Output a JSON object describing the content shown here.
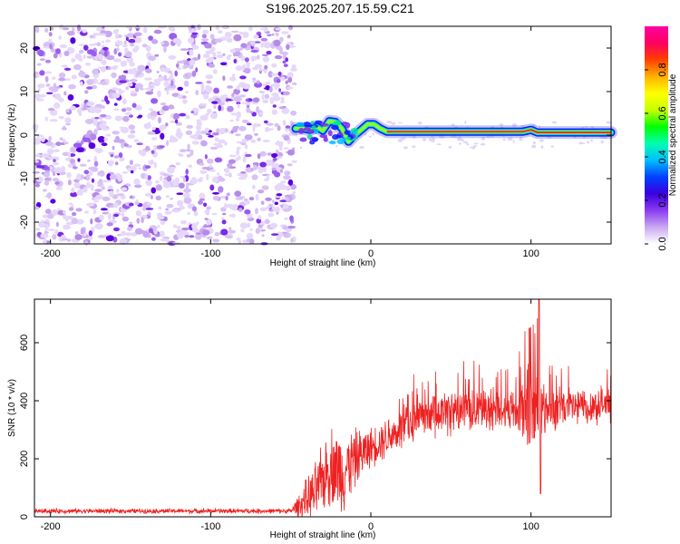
{
  "title": "S196.2025.207.15.59.C21",
  "chart_data": [
    {
      "type": "heatmap",
      "xlabel": "Height of straight line (km)",
      "ylabel": "Frequency (Hz)",
      "xlim": [
        -210,
        150
      ],
      "ylim": [
        -25,
        25
      ],
      "xticks": [
        -200,
        -100,
        0,
        100
      ],
      "yticks": [
        -20,
        -10,
        0,
        10,
        20
      ],
      "colorbar": {
        "label": "Normalized spectral amplitude",
        "range": [
          0,
          1
        ],
        "ticks": [
          "0.0",
          "0.2",
          "0.4",
          "0.6",
          "0.8"
        ],
        "colors": [
          "#ffffff",
          "#c9a8f0",
          "#8a3cf0",
          "#3a00e0",
          "#0040ff",
          "#00c0ff",
          "#00ffb0",
          "#00ff00",
          "#c8ff00",
          "#ffff00",
          "#ffb000",
          "#ff4000",
          "#ff0060",
          "#ff00a0"
        ]
      },
      "noise_region_x": [
        -210,
        -47
      ],
      "signal_trace": [
        {
          "x": -47,
          "y": 1.5
        },
        {
          "x": -42,
          "y": 1.5
        },
        {
          "x": -38,
          "y": 1.2
        },
        {
          "x": -34,
          "y": 2.0
        },
        {
          "x": -30,
          "y": 1.0
        },
        {
          "x": -26,
          "y": 3.2
        },
        {
          "x": -22,
          "y": 3.0
        },
        {
          "x": -18,
          "y": 1.5
        },
        {
          "x": -14,
          "y": -1.5
        },
        {
          "x": -10,
          "y": 0.0
        },
        {
          "x": -6,
          "y": 1.2
        },
        {
          "x": -2,
          "y": 2.5
        },
        {
          "x": 2,
          "y": 2.5
        },
        {
          "x": 6,
          "y": 1.5
        },
        {
          "x": 10,
          "y": 0.8
        },
        {
          "x": 40,
          "y": 0.8
        },
        {
          "x": 80,
          "y": 0.8
        },
        {
          "x": 95,
          "y": 0.8
        },
        {
          "x": 100,
          "y": 1.2
        },
        {
          "x": 104,
          "y": 0.6
        },
        {
          "x": 130,
          "y": 0.6
        },
        {
          "x": 150,
          "y": 0.6
        }
      ]
    },
    {
      "type": "line",
      "xlabel": "Height of straight line (km)",
      "ylabel": "SNR (10 * v/v)",
      "xlim": [
        -210,
        150
      ],
      "ylim": [
        0,
        750
      ],
      "xticks": [
        -200,
        -100,
        0,
        100
      ],
      "yticks": [
        0,
        200,
        400,
        600
      ],
      "series": [
        {
          "color": "#ee2222",
          "envelope": [
            {
              "x": -210,
              "mean": 20,
              "amp": 10
            },
            {
              "x": -50,
              "mean": 20,
              "amp": 10
            },
            {
              "x": -35,
              "mean": 80,
              "amp": 120
            },
            {
              "x": -25,
              "mean": 180,
              "amp": 160
            },
            {
              "x": -18,
              "mean": 150,
              "amp": 170
            },
            {
              "x": -10,
              "mean": 200,
              "amp": 120
            },
            {
              "x": 0,
              "mean": 240,
              "amp": 80
            },
            {
              "x": 20,
              "mean": 310,
              "amp": 90
            },
            {
              "x": 40,
              "mean": 350,
              "amp": 90
            },
            {
              "x": 60,
              "mean": 370,
              "amp": 90
            },
            {
              "x": 90,
              "mean": 370,
              "amp": 90
            },
            {
              "x": 100,
              "mean": 380,
              "amp": 240
            },
            {
              "x": 110,
              "mean": 370,
              "amp": 90
            },
            {
              "x": 150,
              "mean": 390,
              "amp": 70
            }
          ],
          "spikes": [
            {
              "x": 99,
              "y": 650
            },
            {
              "x": 105,
              "y": 750
            },
            {
              "x": 106,
              "y": 80
            }
          ]
        }
      ]
    }
  ]
}
